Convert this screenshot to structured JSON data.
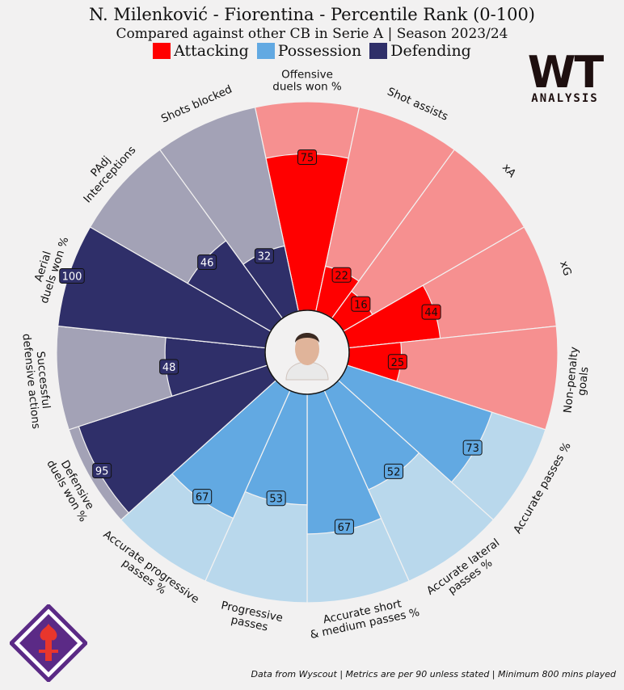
{
  "header": {
    "title": "N. Milenković - Fiorentina - Percentile Rank (0-100)",
    "subtitle": "Compared against other CB in Serie A | Season 2023/24"
  },
  "legend": [
    {
      "label": "Attacking",
      "color": "#ff0000"
    },
    {
      "label": "Possession",
      "color": "#62a9e2"
    },
    {
      "label": "Defending",
      "color": "#2f2f69"
    }
  ],
  "branding": {
    "logo_main": "WT",
    "logo_sub": "ANALYSIS",
    "club_crest": "fiorentina-crest-icon"
  },
  "footer": {
    "note": "Data from Wyscout | Metrics are per 90 unless stated | Minimum 800 mins played"
  },
  "colors": {
    "attacking": "#ff0000",
    "attacking_bg": "#f69090",
    "possession": "#62a9e2",
    "possession_bg": "#b9d8ec",
    "defending": "#2f2f69",
    "defending_bg": "#a3a2b6",
    "background": "#f2f1f1"
  },
  "chart_data": {
    "type": "radial-bar",
    "range": [
      0,
      100
    ],
    "center_image": "player-photo",
    "metrics": [
      {
        "label": "Offensive\nduels won %",
        "value": 75,
        "group": "Attacking"
      },
      {
        "label": "Shot assists",
        "value": 22,
        "group": "Attacking"
      },
      {
        "label": "xA",
        "value": 16,
        "group": "Attacking"
      },
      {
        "label": "xG",
        "value": 44,
        "group": "Attacking"
      },
      {
        "label": "Non-penalty\ngoals",
        "value": 25,
        "group": "Attacking"
      },
      {
        "label": "Accurate passes %",
        "value": 73,
        "group": "Possession"
      },
      {
        "label": "Accurate lateral\npasses %",
        "value": 52,
        "group": "Possession"
      },
      {
        "label": "Accurate short\n& medium passes %",
        "value": 67,
        "group": "Possession"
      },
      {
        "label": "Progressive\npasses",
        "value": 53,
        "group": "Possession"
      },
      {
        "label": "Accurate progressive\npasses %",
        "value": 67,
        "group": "Possession"
      },
      {
        "label": "Defensive\nduels won %",
        "value": 95,
        "group": "Defending"
      },
      {
        "label": "Successful\ndefensive actions",
        "value": 48,
        "group": "Defending"
      },
      {
        "label": "Aerial\nduels won %",
        "value": 100,
        "group": "Defending"
      },
      {
        "label": "PAdj\nInterceptions",
        "value": 46,
        "group": "Defending"
      },
      {
        "label": "Shots blocked",
        "value": 32,
        "group": "Defending"
      }
    ]
  }
}
